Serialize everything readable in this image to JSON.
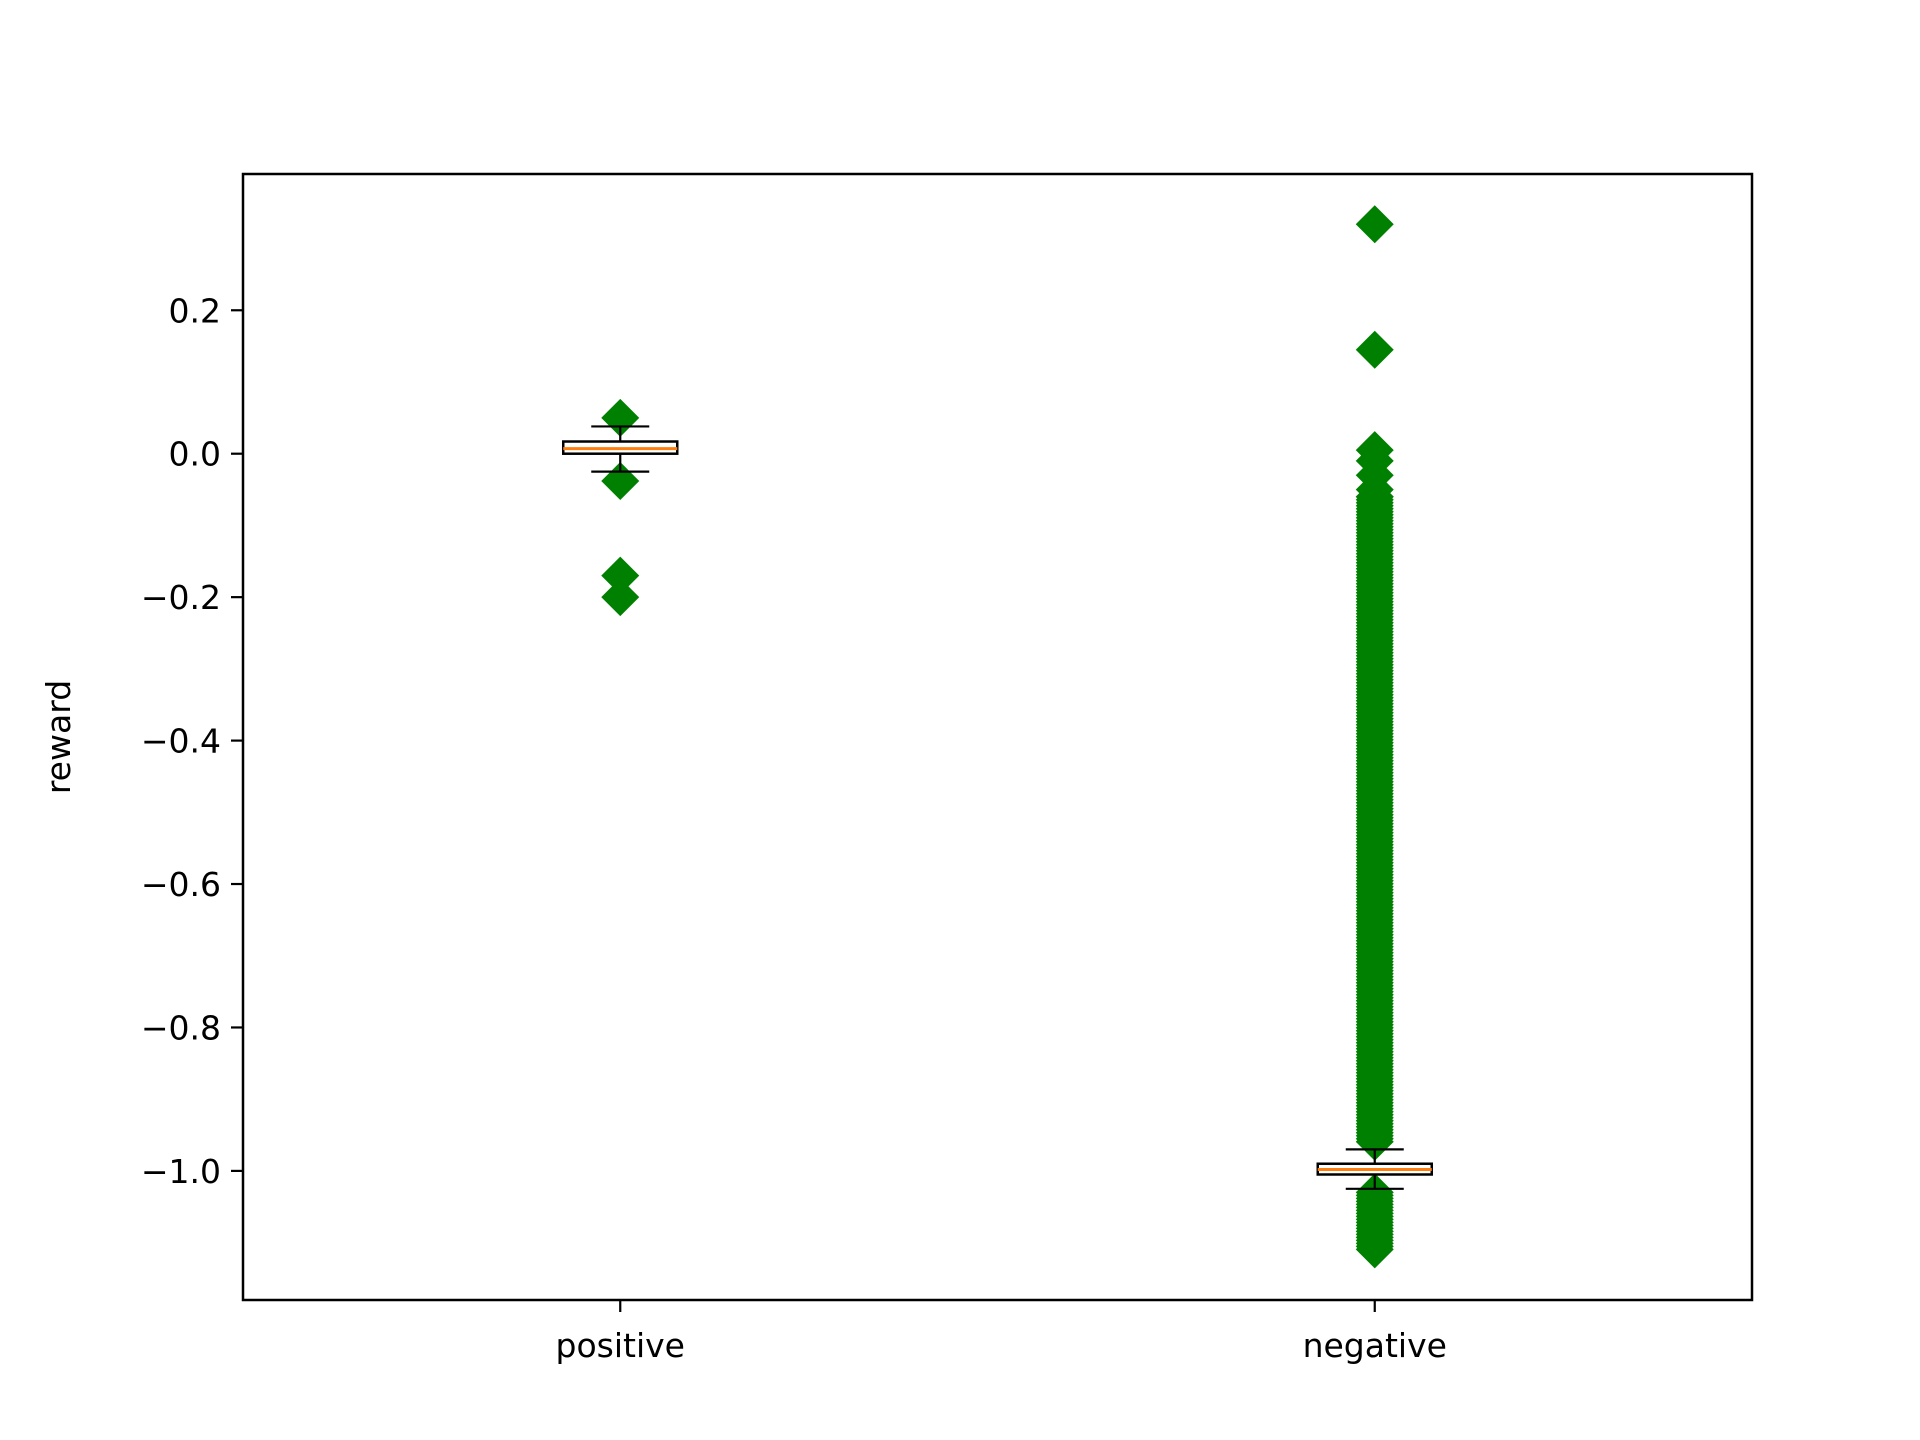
{
  "chart_data": {
    "type": "box",
    "categories": [
      "positive",
      "negative"
    ],
    "ylabel": "reward",
    "xlabel": "",
    "ylim": [
      -1.18,
      0.39
    ],
    "yticks": [
      0.2,
      0.0,
      -0.2,
      -0.4,
      -0.6,
      -0.8,
      -1.0
    ],
    "ytick_labels": [
      "0.2",
      "0.0",
      "−0.2",
      "−0.4",
      "−0.6",
      "−0.8",
      "−1.0"
    ],
    "grid": false,
    "colors": {
      "median": "#ff7f0e",
      "outlier": "#008000",
      "box": "#000000"
    },
    "boxes": [
      {
        "category": "positive",
        "q1": 0.0,
        "median": 0.007,
        "q3": 0.017,
        "whisker_low": -0.025,
        "whisker_high": 0.038,
        "outliers": [
          0.05,
          -0.038,
          -0.17,
          -0.2
        ]
      },
      {
        "category": "negative",
        "q1": -1.005,
        "median": -0.998,
        "q3": -0.99,
        "whisker_low": -1.025,
        "whisker_high": -0.97,
        "outliers": [
          0.32,
          0.145,
          0.005,
          -0.01,
          -0.03,
          -0.05,
          -0.06
        ],
        "outlier_bands": [
          {
            "from": -0.06,
            "to": -0.96
          },
          {
            "from": -1.03,
            "to": -1.11
          }
        ]
      }
    ]
  }
}
